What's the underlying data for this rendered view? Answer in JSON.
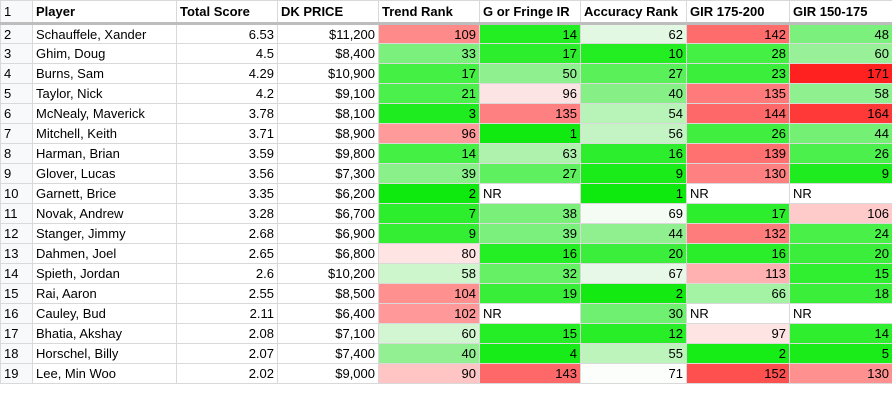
{
  "headers": [
    "Player",
    "Total Score",
    "DK PRICE",
    "Trend Rank",
    "G or Fringe IR",
    "Accuracy Rank",
    "GIR 175-200",
    "GIR 150-175"
  ],
  "header_row_number": "1",
  "rows": [
    {
      "rn": "2",
      "player": "Schauffele, Xander",
      "score": "6.53",
      "price": "$11,200",
      "trend": "109",
      "gfir": "14",
      "acc": "62",
      "gir175": "142",
      "gir150": "48"
    },
    {
      "rn": "3",
      "player": "Ghim, Doug",
      "score": "4.5",
      "price": "$8,400",
      "trend": "33",
      "gfir": "17",
      "acc": "10",
      "gir175": "28",
      "gir150": "60"
    },
    {
      "rn": "4",
      "player": "Burns, Sam",
      "score": "4.29",
      "price": "$10,900",
      "trend": "17",
      "gfir": "50",
      "acc": "27",
      "gir175": "23",
      "gir150": "171"
    },
    {
      "rn": "5",
      "player": "Taylor, Nick",
      "score": "4.2",
      "price": "$9,100",
      "trend": "21",
      "gfir": "96",
      "acc": "40",
      "gir175": "135",
      "gir150": "58"
    },
    {
      "rn": "6",
      "player": "McNealy, Maverick",
      "score": "3.78",
      "price": "$8,100",
      "trend": "3",
      "gfir": "135",
      "acc": "54",
      "gir175": "144",
      "gir150": "164"
    },
    {
      "rn": "7",
      "player": "Mitchell, Keith",
      "score": "3.71",
      "price": "$8,900",
      "trend": "96",
      "gfir": "1",
      "acc": "56",
      "gir175": "26",
      "gir150": "44"
    },
    {
      "rn": "8",
      "player": "Harman, Brian",
      "score": "3.59",
      "price": "$9,800",
      "trend": "14",
      "gfir": "63",
      "acc": "16",
      "gir175": "139",
      "gir150": "26"
    },
    {
      "rn": "9",
      "player": "Glover, Lucas",
      "score": "3.56",
      "price": "$7,300",
      "trend": "39",
      "gfir": "27",
      "acc": "9",
      "gir175": "130",
      "gir150": "9"
    },
    {
      "rn": "10",
      "player": "Garnett, Brice",
      "score": "3.35",
      "price": "$6,200",
      "trend": "2",
      "gfir": "NR",
      "acc": "1",
      "gir175": "NR",
      "gir150": "NR"
    },
    {
      "rn": "11",
      "player": "Novak, Andrew",
      "score": "3.28",
      "price": "$6,700",
      "trend": "7",
      "gfir": "38",
      "acc": "69",
      "gir175": "17",
      "gir150": "106"
    },
    {
      "rn": "12",
      "player": "Stanger, Jimmy",
      "score": "2.68",
      "price": "$6,900",
      "trend": "9",
      "gfir": "39",
      "acc": "44",
      "gir175": "132",
      "gir150": "24"
    },
    {
      "rn": "13",
      "player": "Dahmen, Joel",
      "score": "2.65",
      "price": "$6,800",
      "trend": "80",
      "gfir": "16",
      "acc": "20",
      "gir175": "16",
      "gir150": "20"
    },
    {
      "rn": "14",
      "player": "Spieth, Jordan",
      "score": "2.6",
      "price": "$10,200",
      "trend": "58",
      "gfir": "32",
      "acc": "67",
      "gir175": "113",
      "gir150": "15"
    },
    {
      "rn": "15",
      "player": "Rai, Aaron",
      "score": "2.55",
      "price": "$8,500",
      "trend": "104",
      "gfir": "19",
      "acc": "2",
      "gir175": "66",
      "gir150": "18"
    },
    {
      "rn": "16",
      "player": "Cauley, Bud",
      "score": "2.11",
      "price": "$6,400",
      "trend": "102",
      "gfir": "NR",
      "acc": "30",
      "gir175": "NR",
      "gir150": "NR"
    },
    {
      "rn": "17",
      "player": "Bhatia, Akshay",
      "score": "2.08",
      "price": "$7,100",
      "trend": "60",
      "gfir": "15",
      "acc": "12",
      "gir175": "97",
      "gir150": "14"
    },
    {
      "rn": "18",
      "player": "Horschel, Billy",
      "score": "2.07",
      "price": "$7,400",
      "trend": "40",
      "gfir": "4",
      "acc": "55",
      "gir175": "2",
      "gir150": "5"
    },
    {
      "rn": "19",
      "player": "Lee, Min Woo",
      "score": "2.02",
      "price": "$9,000",
      "trend": "90",
      "gfir": "143",
      "acc": "71",
      "gir175": "152",
      "gir150": "130"
    }
  ],
  "colors": {
    "trend": [
      "#ff8a8a",
      "#7cf07c",
      "#44f044",
      "#4cf04c",
      "#1eec1e",
      "#ff9a9a",
      "#44f044",
      "#8af08a",
      "#0eea0e",
      "#2cee2c",
      "#34ee34",
      "#ffe4e4",
      "#cdf6cd",
      "#ff9090",
      "#ff9898",
      "#d2f6d2",
      "#92f092",
      "#ffc4c4"
    ],
    "gfir": [
      "#22ee22",
      "#2cee2c",
      "#8ef08e",
      "#fde4e4",
      "#ff8080",
      "#11ea11",
      "#aef2ae",
      "#5ef05e",
      "#ffffff",
      "#7af07a",
      "#7cf07c",
      "#24ee24",
      "#66f066",
      "#38ee38",
      "#ffffff",
      "#26ee26",
      "#18ec18",
      "#ff6868"
    ],
    "acc": [
      "#e2f8e2",
      "#22ee22",
      "#5af05a",
      "#86f086",
      "#b8f4b8",
      "#c4f4c4",
      "#2cee2c",
      "#1aec1a",
      "#0eea0e",
      "#f4fcf4",
      "#90f090",
      "#3cee3c",
      "#e8f8e8",
      "#12ea12",
      "#70f070",
      "#28ee28",
      "#bcf4bc",
      "#fcfefc"
    ],
    "gir175": [
      "#ff6c6c",
      "#44f044",
      "#3cee3c",
      "#ff7a7a",
      "#ff6868",
      "#40ee40",
      "#ff7070",
      "#ff8080",
      "#ffffff",
      "#2cee2c",
      "#ff7c7c",
      "#2aee2a",
      "#ffb0b0",
      "#a4f2a4",
      "#ffffff",
      "#ffe4e4",
      "#16ec16",
      "#ff5050"
    ],
    "gir150": [
      "#7cf07c",
      "#98f098",
      "#ff2020",
      "#8ef08e",
      "#ff3838",
      "#74f074",
      "#4cf04c",
      "#1eec1e",
      "#ffffff",
      "#ffcaca",
      "#48f048",
      "#3cee3c",
      "#30ee30",
      "#3aee3a",
      "#ffffff",
      "#2eee2e",
      "#1aec1a",
      "#ff9090"
    ]
  }
}
